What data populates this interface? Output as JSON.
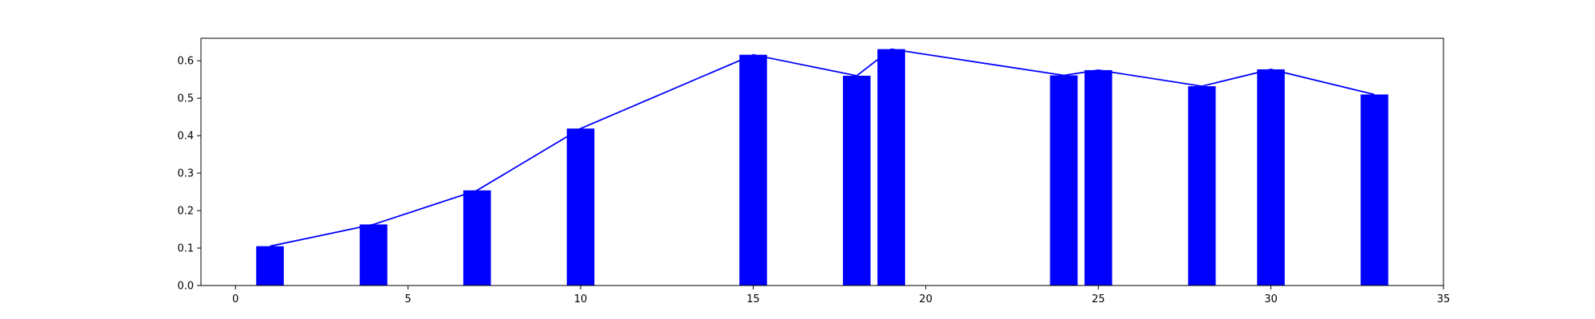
{
  "chart_data": {
    "type": "bar",
    "x": [
      1,
      4,
      7,
      10,
      15,
      18,
      19,
      24,
      25,
      28,
      30,
      33
    ],
    "values": [
      0.105,
      0.163,
      0.254,
      0.419,
      0.616,
      0.56,
      0.631,
      0.561,
      0.575,
      0.532,
      0.577,
      0.51
    ],
    "overlay_line": true,
    "bar_width": 0.8,
    "xlim": [
      -1,
      35
    ],
    "ylim": [
      0,
      0.66
    ],
    "xticks": [
      0,
      5,
      10,
      15,
      20,
      25,
      30,
      35
    ],
    "yticks": [
      0.0,
      0.1,
      0.2,
      0.3,
      0.4,
      0.5,
      0.6
    ],
    "xtick_labels": [
      "0",
      "5",
      "10",
      "15",
      "20",
      "25",
      "30",
      "35"
    ],
    "ytick_labels": [
      "0.0",
      "0.1",
      "0.2",
      "0.3",
      "0.4",
      "0.5",
      "0.6"
    ],
    "color": "#0000ff",
    "grid": false,
    "title": "",
    "xlabel": "",
    "ylabel": ""
  }
}
